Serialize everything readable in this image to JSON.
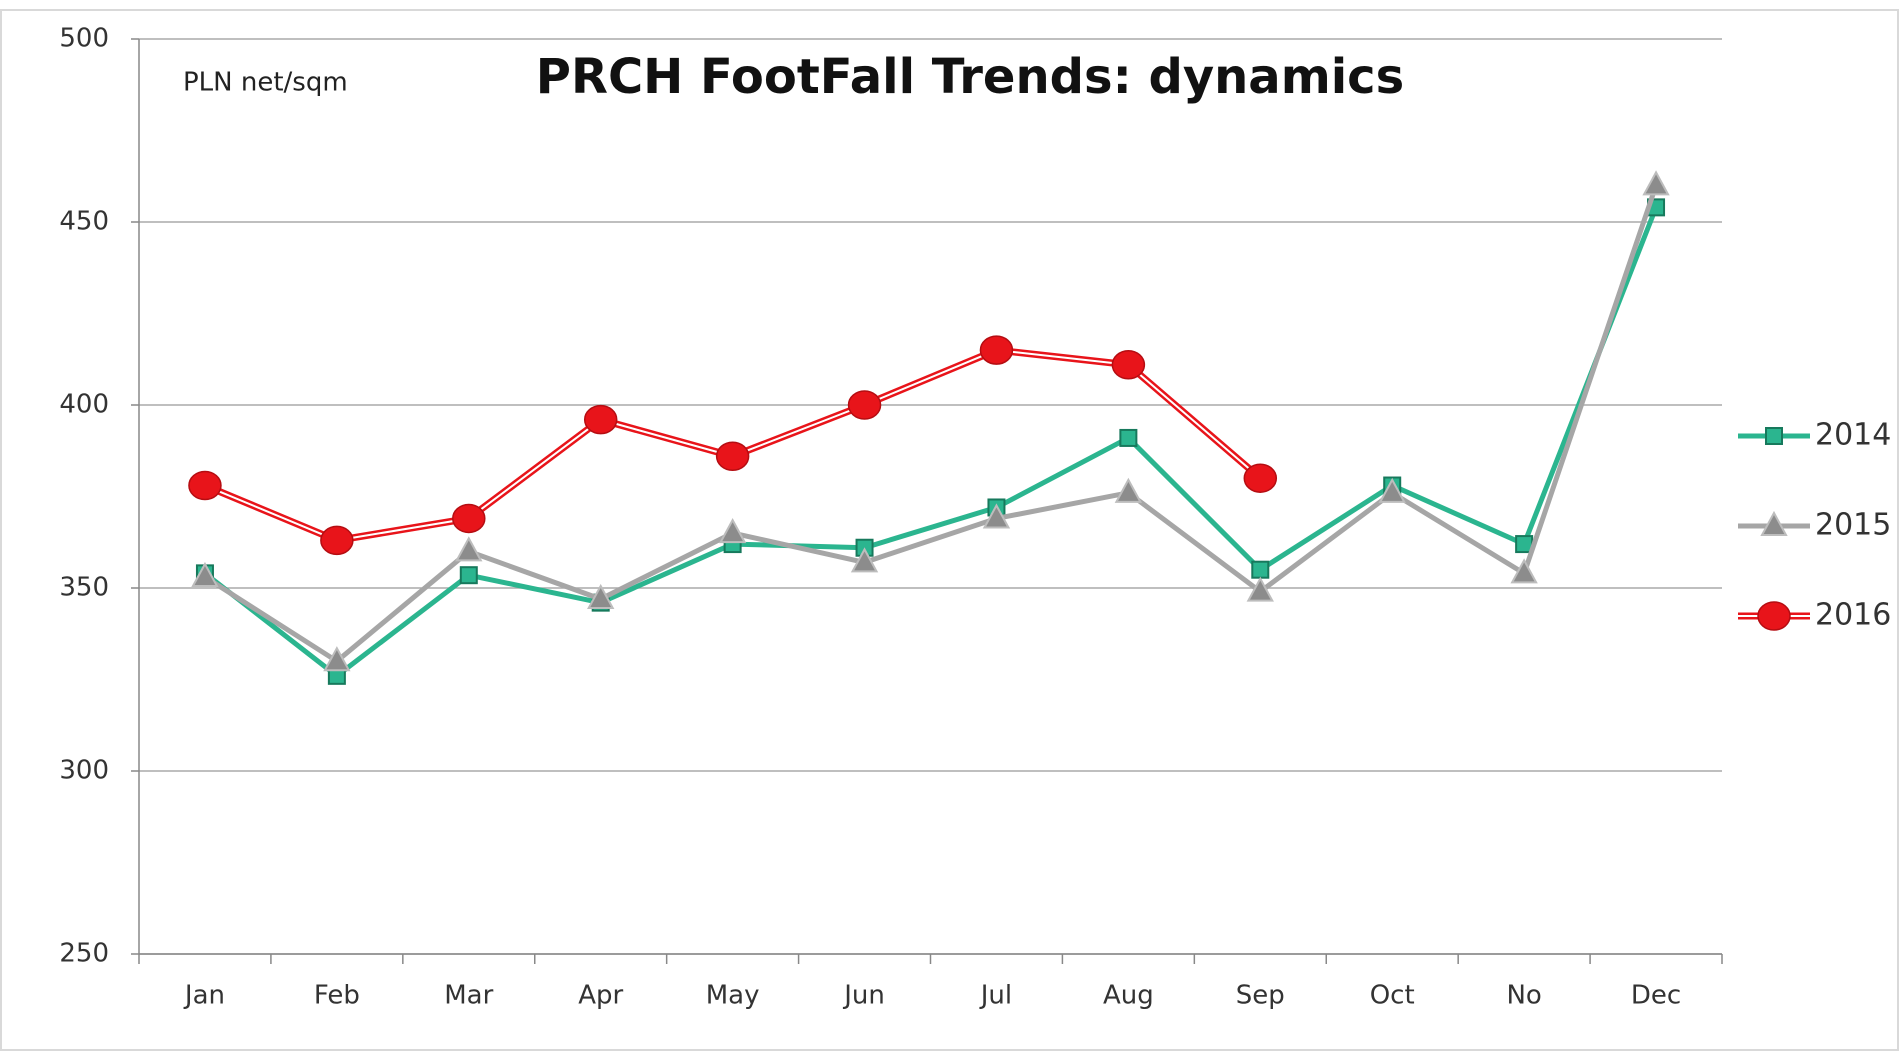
{
  "chart_data": {
    "type": "line",
    "title": "PRCH FootFall Trends:  dynamics",
    "annotation": "PLN net/sqm",
    "categories": [
      "Jan",
      "Feb",
      "Mar",
      "Apr",
      "May",
      "Jun",
      "Jul",
      "Aug",
      "Sep",
      "Oct",
      "No",
      "Dec"
    ],
    "series": [
      {
        "name": "2014",
        "color": "#2bb58f",
        "marker": "square",
        "values": [
          354,
          326,
          353.5,
          346,
          362,
          361,
          372,
          391,
          355,
          378,
          362,
          454
        ]
      },
      {
        "name": "2015",
        "color": "#a6a6a6",
        "marker": "triangle",
        "values": [
          353,
          330,
          360,
          347,
          365,
          357,
          369,
          376,
          349,
          376,
          354,
          460
        ]
      },
      {
        "name": "2016",
        "color": "#e8141a",
        "marker": "circle",
        "values": [
          378,
          363,
          369,
          396,
          386,
          400,
          415,
          411,
          380,
          null,
          null,
          null
        ]
      }
    ],
    "ylim": [
      250,
      500
    ],
    "yticks": [
      250,
      300,
      350,
      400,
      450,
      500
    ],
    "grid": true,
    "legend": "right"
  }
}
